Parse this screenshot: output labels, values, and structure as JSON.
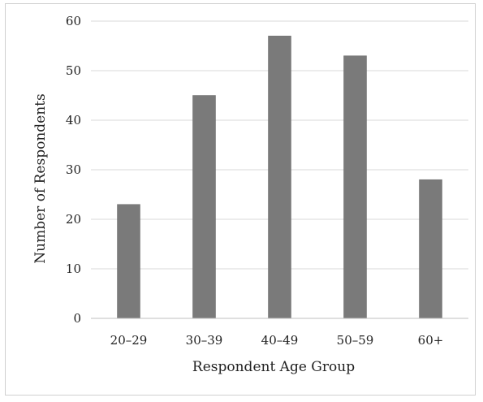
{
  "chart_data": {
    "type": "bar",
    "title": "",
    "xlabel": "Respondent Age Group",
    "ylabel": "Number of Respondents",
    "categories": [
      "20–29",
      "30–39",
      "40–49",
      "50–59",
      "60+"
    ],
    "values": [
      23,
      45,
      57,
      53,
      28
    ],
    "ylim": [
      0,
      60
    ],
    "yticks": [
      "0",
      "10",
      "20",
      "30",
      "40",
      "50",
      "60"
    ],
    "grid": true,
    "legend": "none",
    "colors": {
      "bar": "#7a7a7a",
      "bar_outline": "#6a6a6a",
      "grid": "#d9d9d9",
      "axis": "#bfbfbf"
    }
  }
}
